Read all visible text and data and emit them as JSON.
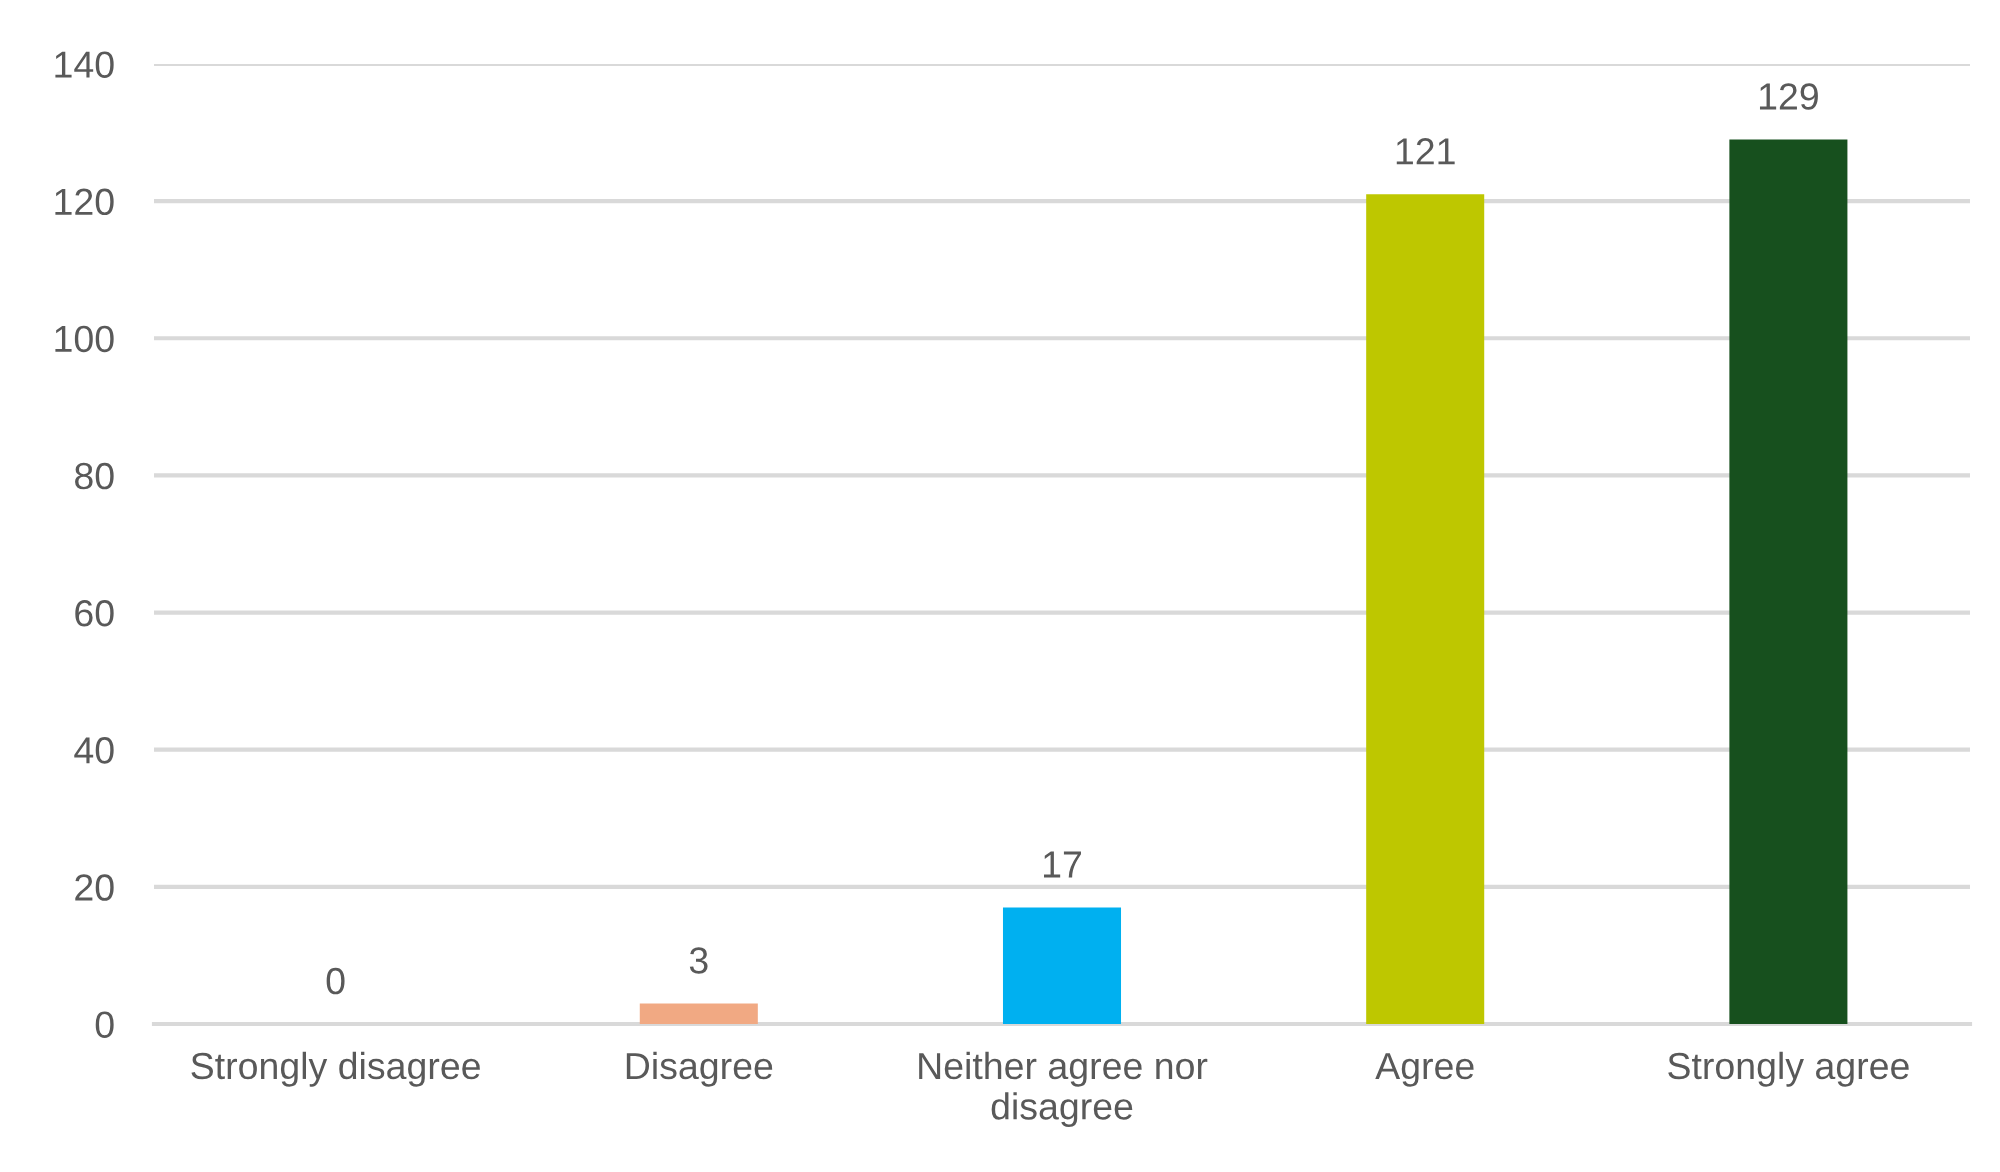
{
  "chart_data": {
    "type": "bar",
    "categories": [
      "Strongly disagree",
      "Disagree",
      "Neither agree nor\ndisagree",
      "Agree",
      "Strongly agree"
    ],
    "values": [
      0,
      3,
      17,
      121,
      129
    ],
    "colors": [
      null,
      "#f1a983",
      "#00b0f0",
      "#bec700",
      "#17501e"
    ],
    "ylim": [
      0,
      140
    ],
    "yticks": [
      0,
      20,
      40,
      60,
      80,
      100,
      120,
      140
    ],
    "grid": "y",
    "data_labels": true,
    "legend": false
  }
}
